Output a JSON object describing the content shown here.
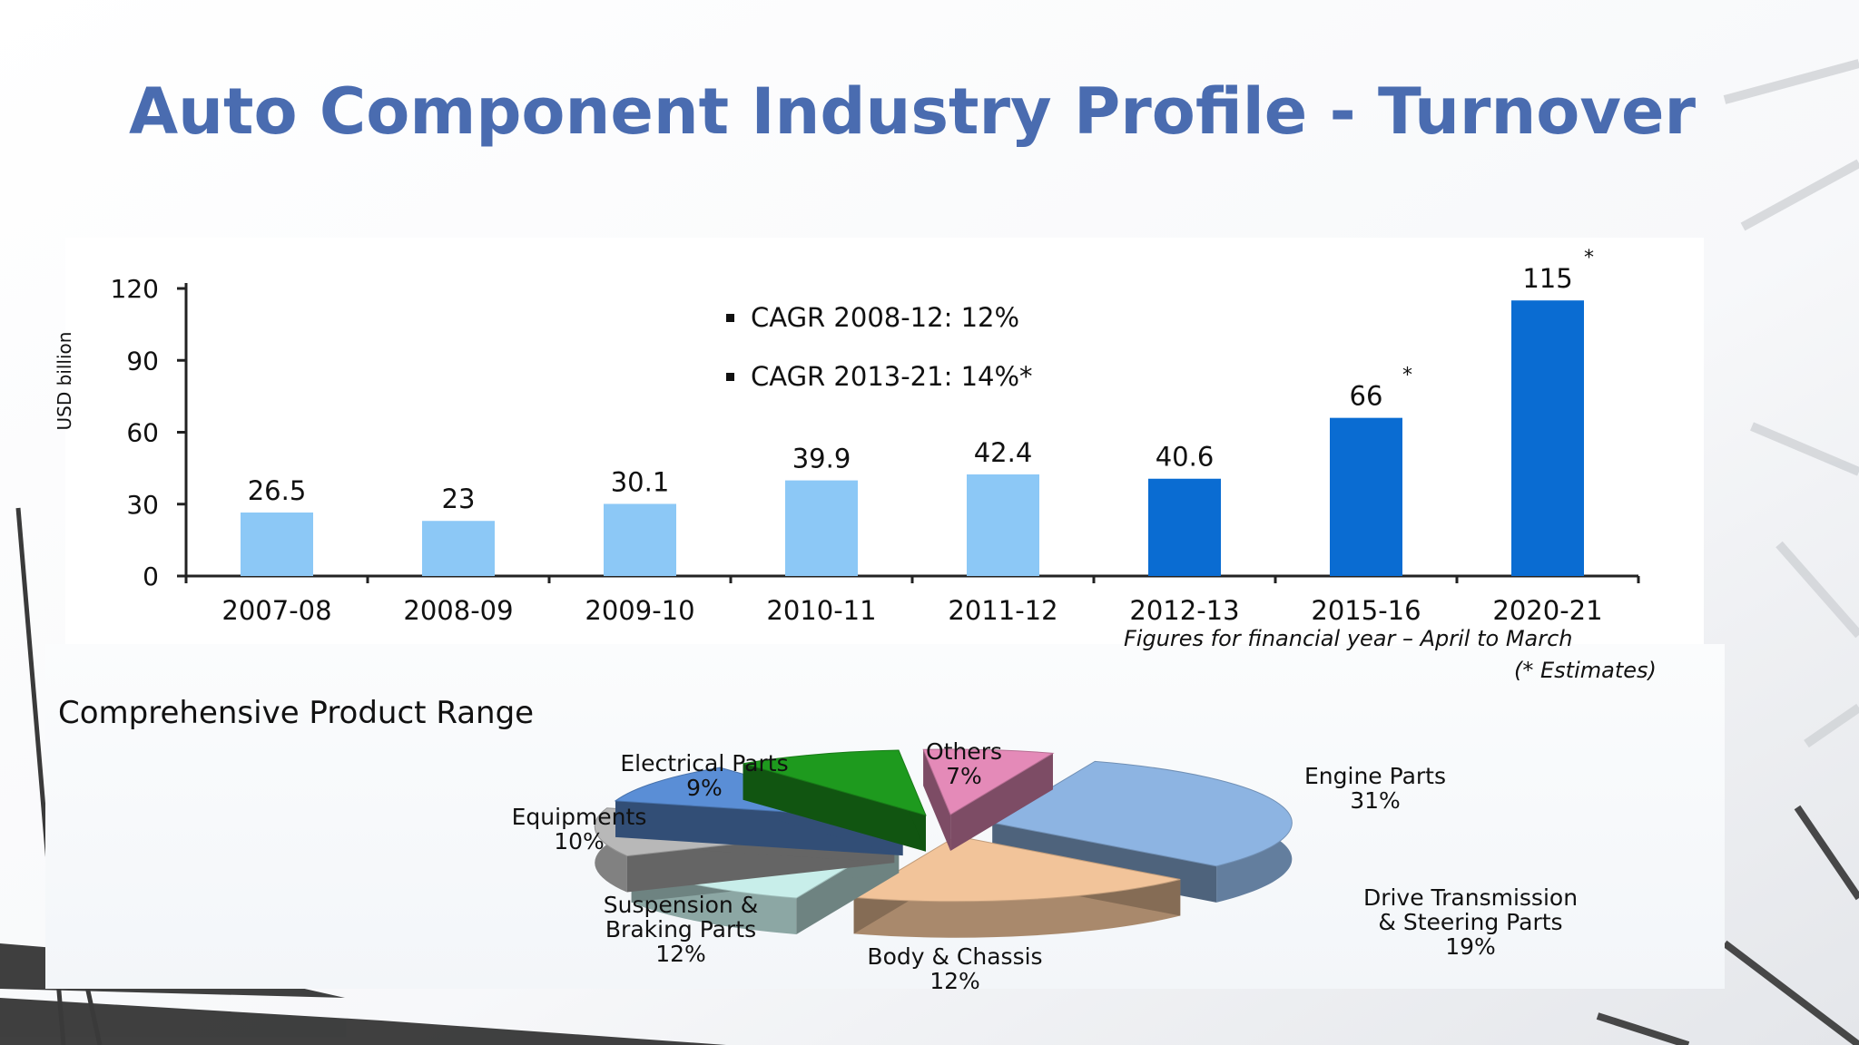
{
  "slide": {
    "title": "Auto Component Industry Profile - Turnover",
    "pie_section_title": "Comprehensive Product Range",
    "note_line1": "Figures for financial year – April to March",
    "note_line2": "(* Estimates)"
  },
  "colors": {
    "title": "#4a6cb0",
    "bar_actual": "#8cc8f6",
    "bar_estimate": "#0a6cd2"
  },
  "chart_data": [
    {
      "type": "bar",
      "title": "",
      "xlabel": "",
      "ylabel": "USD billion",
      "ylim": [
        0,
        120
      ],
      "yticks": [
        0,
        30,
        60,
        90,
        120
      ],
      "categories": [
        "2007-08",
        "2008-09",
        "2009-10",
        "2010-11",
        "2011-12",
        "2012-13",
        "2015-16",
        "2020-21"
      ],
      "values": [
        26.5,
        23,
        30.1,
        39.9,
        42.4,
        40.6,
        66,
        115
      ],
      "value_labels": [
        "26.5",
        "23",
        "30.1",
        "39.9",
        "42.4",
        "40.6",
        "66",
        "115"
      ],
      "estimate": [
        false,
        false,
        false,
        false,
        false,
        false,
        true,
        true
      ],
      "annotations": [
        "CAGR 2008-12: 12%",
        "CAGR 2013-21: 14%*"
      ],
      "grid": false,
      "legend": "none"
    },
    {
      "type": "pie",
      "title": "Comprehensive Product Range",
      "slices": [
        {
          "name": "Engine Parts",
          "value": 31,
          "label": "31%",
          "color": "#8db4e2"
        },
        {
          "name": "Drive Transmission & Steering Parts",
          "value": 19,
          "label": "19%",
          "color": "#f2c49a"
        },
        {
          "name": "Body & Chassis",
          "value": 12,
          "label": "12%",
          "color": "#c8eeea"
        },
        {
          "name": "Suspension & Braking Parts",
          "value": 12,
          "label": "12%",
          "color": "#b8b8b8"
        },
        {
          "name": "Equipments",
          "value": 10,
          "label": "10%",
          "color": "#5a8ed6"
        },
        {
          "name": "Electrical Parts",
          "value": 9,
          "label": "9%",
          "color": "#1e9a1e"
        },
        {
          "name": "Others",
          "value": 7,
          "label": "7%",
          "color": "#e48ab8"
        }
      ],
      "legend": "none"
    }
  ]
}
